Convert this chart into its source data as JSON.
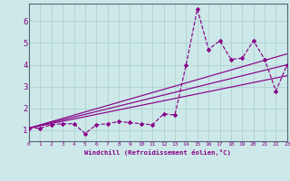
{
  "xlabel": "Windchill (Refroidissement éolien,°C)",
  "bg_color": "#cce8e8",
  "line_color": "#880088",
  "grid_color": "#aacccc",
  "spine_color": "#556677",
  "xlim": [
    0,
    23
  ],
  "ylim": [
    0.5,
    6.8
  ],
  "yticks": [
    1,
    2,
    3,
    4,
    5,
    6
  ],
  "xtick_labels": [
    "0",
    "1",
    "2",
    "3",
    "4",
    "5",
    "6",
    "7",
    "8",
    "9",
    "10",
    "11",
    "12",
    "13",
    "14",
    "15",
    "16",
    "17",
    "18",
    "19",
    "20",
    "21",
    "22",
    "23"
  ],
  "series1_x": [
    0,
    1,
    2,
    3,
    4,
    5,
    6,
    7,
    8,
    9,
    10,
    11,
    12,
    13,
    14,
    15,
    16,
    17,
    18,
    19,
    20,
    21,
    22,
    23
  ],
  "series1_y": [
    1.1,
    1.1,
    1.25,
    1.3,
    1.3,
    0.85,
    1.25,
    1.3,
    1.4,
    1.35,
    1.3,
    1.25,
    1.75,
    1.7,
    4.0,
    6.55,
    4.7,
    5.1,
    4.25,
    4.3,
    5.1,
    4.25,
    2.8,
    4.0
  ],
  "series2_x": [
    0,
    23
  ],
  "series2_y": [
    1.1,
    4.5
  ],
  "series3_x": [
    0,
    23
  ],
  "series3_y": [
    1.1,
    4.0
  ],
  "series4_x": [
    0,
    23
  ],
  "series4_y": [
    1.1,
    3.5
  ]
}
